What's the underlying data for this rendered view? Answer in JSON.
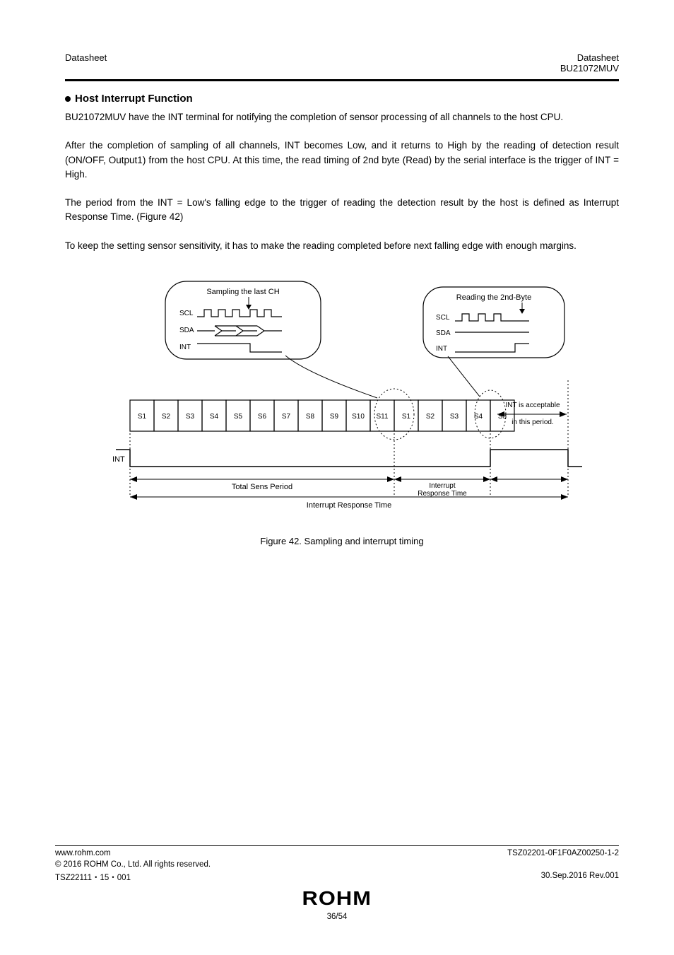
{
  "header": {
    "left": "Datasheet",
    "right_line1": "Datasheet",
    "right_line2": "BU21072MUV"
  },
  "section": {
    "title": "Host Interrupt Function",
    "p1": "BU21072MUV have the INT terminal for notifying the completion of sensor processing of all channels to the host CPU.",
    "p2": "After the completion of sampling of all channels, INT becomes Low, and it returns to High by the reading of detection result (ON/OFF, Output1) from the host CPU. At this time, the read timing of 2nd byte (Read) by the serial interface is the trigger of INT = High.",
    "p3": "The period from the INT = Low's falling edge to the trigger of reading the detection result by the host is defined as Interrupt Response Time. (Figure 42)",
    "p4": "To keep the setting sensor sensitivity, it has to make the reading completed before next falling edge with enough margins."
  },
  "diagram": {
    "callout1": {
      "l1": "Sampling the last CH",
      "scl": "SCL",
      "sda": "SDA",
      "int": "INT"
    },
    "callout2": {
      "l1": "Reading the 2nd-Byte",
      "scl": "SCL",
      "sda": "SDA",
      "int": "INT"
    },
    "slabels": [
      "S1",
      "S2",
      "S3",
      "S4",
      "S5",
      "S6",
      "S7",
      "S8",
      "S9",
      "S10",
      "S11",
      "S1",
      "S2",
      "S3",
      "S4",
      "S5"
    ],
    "int_row_label": "INT",
    "interrupt_resp": "Interrupt Response Time",
    "total_sense": "Total Sens Period",
    "int_inner": "Interrupt Response Time",
    "int_right": "INT is acceptable\nin this period."
  },
  "figcaption": "Figure 42. Sampling and interrupt timing",
  "footer": {
    "url": "www.rohm.com",
    "copy": "© 2016 ROHM Co., Ltd. All rights reserved.",
    "tsz": "TSZ22111・15・001",
    "page": "36/54",
    "rev_top": "TSZ02201-0F1F0AZ00250-1-2",
    "rev_bot": "30.Sep.2016 Rev.001",
    "logo": "ROHM"
  },
  "style": {
    "stroke": "#000000",
    "dotted": "2,3"
  }
}
